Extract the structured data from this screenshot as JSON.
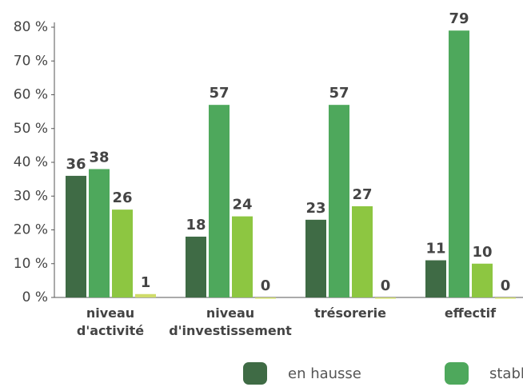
{
  "chart_data": {
    "type": "bar",
    "categories": [
      "niveau d'activité",
      "niveau d'investissement",
      "trésorerie",
      "effectif"
    ],
    "series": [
      {
        "name": "en hausse",
        "color": "#3f6b45",
        "values": [
          36,
          18,
          23,
          11
        ]
      },
      {
        "name": "stabl",
        "color": "#4ea85c",
        "values": [
          38,
          57,
          57,
          79
        ]
      },
      {
        "color": "#8dc641",
        "values": [
          26,
          24,
          27,
          10
        ]
      },
      {
        "color": "#cfdc6a",
        "values": [
          1,
          0,
          0,
          0
        ]
      }
    ],
    "ylim": [
      0,
      80
    ],
    "yticks": [
      {
        "value": 0,
        "label": "0 %"
      },
      {
        "value": 10,
        "label": "10 %"
      },
      {
        "value": 20,
        "label": "20 %"
      },
      {
        "value": 30,
        "label": "30 %"
      },
      {
        "value": 40,
        "label": "40 %"
      },
      {
        "value": 50,
        "label": "50 %"
      },
      {
        "value": 60,
        "label": "60 %"
      },
      {
        "value": 70,
        "label": "70 %"
      },
      {
        "value": 80,
        "label": "80 %"
      }
    ]
  }
}
